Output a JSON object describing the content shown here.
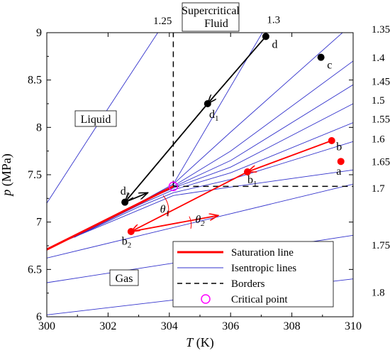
{
  "chart_data": {
    "type": "line",
    "xlabel": {
      "italic": "T",
      "rest": " (K)"
    },
    "ylabel": {
      "italic": "p",
      "rest": " (MPa)"
    },
    "xlim": [
      300,
      310
    ],
    "ylim": [
      6,
      9
    ],
    "xticks": [
      300,
      302,
      304,
      306,
      308,
      310
    ],
    "yticks": [
      6,
      6.5,
      7,
      7.5,
      8,
      8.5,
      9
    ],
    "xtick_labels": [
      "300",
      "302",
      "304",
      "306",
      "308",
      "310"
    ],
    "ytick_labels": [
      "6",
      "6.5",
      "7",
      "7.5",
      "8",
      "8.5",
      "9"
    ],
    "colors": {
      "saturation": "#ff0000",
      "isentropic": "#3333cc",
      "border": "#000000",
      "critical": "#ff00ff",
      "path_d": "#000000",
      "path_b": "#ff0000"
    },
    "region_labels": {
      "supercritical_line1": "Supercritical",
      "supercritical_line2": "Fluid",
      "liquid": "Liquid",
      "gas": "Gas"
    },
    "critical_point": {
      "x": 304.13,
      "y": 7.377
    },
    "saturation_line": {
      "x": [
        300,
        304.13
      ],
      "y": [
        6.71,
        7.377
      ]
    },
    "borders": {
      "vertical": {
        "x": [
          304.13,
          304.13
        ],
        "y": [
          7.377,
          9.2
        ]
      },
      "horizontal": {
        "x": [
          304.13,
          310
        ],
        "y": [
          7.377,
          7.377
        ]
      }
    },
    "isentropic_lines": [
      {
        "label": "1.25",
        "x": [
          300,
          302,
          304.13
        ],
        "y": [
          7.2,
          8.2,
          9.25
        ]
      },
      {
        "label": "1.3",
        "x": [
          300.9,
          303,
          304.13,
          307.4
        ],
        "y": [
          6.84,
          7.2,
          7.4,
          9.2
        ]
      },
      {
        "label": "1.35",
        "x": [
          300.9,
          303,
          304.13,
          306,
          310
        ],
        "y": [
          6.84,
          7.2,
          7.4,
          7.95,
          9.1
        ]
      },
      {
        "label": "1.4",
        "x": [
          300.9,
          303,
          304.13,
          306,
          310
        ],
        "y": [
          6.84,
          7.2,
          7.38,
          7.75,
          8.7
        ]
      },
      {
        "label": "1.45",
        "x": [
          300.9,
          303,
          304.13,
          306,
          310
        ],
        "y": [
          6.84,
          7.2,
          7.37,
          7.65,
          8.45
        ]
      },
      {
        "label": "1.5",
        "x": [
          300.9,
          303,
          304.13,
          306,
          310
        ],
        "y": [
          6.84,
          7.2,
          7.36,
          7.58,
          8.25
        ]
      },
      {
        "label": "1.55",
        "x": [
          300.9,
          303,
          304.13,
          306,
          310
        ],
        "y": [
          6.84,
          7.18,
          7.34,
          7.52,
          8.05
        ]
      },
      {
        "label": "1.6",
        "x": [
          300.9,
          303,
          304.13,
          306,
          310
        ],
        "y": [
          6.84,
          7.16,
          7.31,
          7.45,
          7.85
        ]
      },
      {
        "label": "1.65",
        "x": [
          300,
          304.13,
          306,
          310
        ],
        "y": [
          6.72,
          7.28,
          7.37,
          7.55
        ]
      },
      {
        "label": "1.7",
        "x": [
          300,
          310
        ],
        "y": [
          6.62,
          7.4
        ]
      },
      {
        "label": "1.75",
        "x": [
          300,
          310
        ],
        "y": [
          6.36,
          6.86
        ]
      },
      {
        "label": "1.8",
        "x": [
          300,
          310
        ],
        "y": [
          6.02,
          6.4
        ]
      }
    ],
    "isentropic_label_positions": [
      {
        "label": "1.25",
        "x": 303.78,
        "y": 9.09
      },
      {
        "label": "1.3",
        "x": 307.4,
        "y": 9.1
      },
      {
        "label": "1.35",
        "x": 310.6,
        "y": 9.0
      },
      {
        "label": "1.4",
        "x": 310.6,
        "y": 8.7
      },
      {
        "label": "1.45",
        "x": 310.6,
        "y": 8.45
      },
      {
        "label": "1.5",
        "x": 310.6,
        "y": 8.25
      },
      {
        "label": "1.55",
        "x": 310.6,
        "y": 8.05
      },
      {
        "label": "1.6",
        "x": 310.6,
        "y": 7.84
      },
      {
        "label": "1.65",
        "x": 310.6,
        "y": 7.6
      },
      {
        "label": "1.7",
        "x": 310.6,
        "y": 7.32
      },
      {
        "label": "1.75",
        "x": 310.6,
        "y": 6.72
      },
      {
        "label": "1.8",
        "x": 310.6,
        "y": 6.22
      }
    ],
    "points": [
      {
        "name": "d",
        "label": "d",
        "sub": "",
        "color": "black",
        "x": 307.15,
        "y": 8.96,
        "lx": 307.35,
        "ly": 8.84
      },
      {
        "name": "d1",
        "label": "d",
        "sub": "1",
        "color": "black",
        "x": 305.25,
        "y": 8.25,
        "lx": 305.3,
        "ly": 8.1
      },
      {
        "name": "d2",
        "label": "d",
        "sub": "2",
        "color": "black",
        "x": 302.55,
        "y": 7.21,
        "lx": 302.4,
        "ly": 7.29
      },
      {
        "name": "c",
        "label": "c",
        "sub": "",
        "color": "black",
        "x": 308.95,
        "y": 8.74,
        "lx": 309.15,
        "ly": 8.62
      },
      {
        "name": "b",
        "label": "b",
        "sub": "",
        "color": "red",
        "x": 309.3,
        "y": 7.86,
        "lx": 309.45,
        "ly": 7.76
      },
      {
        "name": "a",
        "label": "a",
        "sub": "",
        "color": "red",
        "x": 309.6,
        "y": 7.64,
        "lx": 309.45,
        "ly": 7.5
      },
      {
        "name": "b1",
        "label": "b",
        "sub": "1",
        "color": "red",
        "x": 306.55,
        "y": 7.53,
        "lx": 306.55,
        "ly": 7.41
      },
      {
        "name": "b2",
        "label": "b",
        "sub": "2",
        "color": "red",
        "x": 302.75,
        "y": 6.9,
        "lx": 302.45,
        "ly": 6.76
      }
    ],
    "paths": [
      {
        "name": "path-d",
        "color": "black",
        "x": [
          307.15,
          305.25,
          302.55,
          303.3
        ],
        "y": [
          8.96,
          8.25,
          7.21,
          7.31
        ],
        "arrow_at": [
          1,
          2,
          3
        ]
      },
      {
        "name": "path-b",
        "color": "red",
        "x": [
          309.3,
          306.55,
          302.75,
          305.6
        ],
        "y": [
          7.86,
          7.53,
          6.9,
          7.07
        ],
        "arrow_at": [
          1,
          2,
          3
        ]
      }
    ],
    "angles": [
      {
        "name": "theta1",
        "label": "θ",
        "sub": "1",
        "x": 303.85,
        "y": 7.1
      },
      {
        "name": "theta2",
        "label": "θ",
        "sub": "2",
        "x": 305.0,
        "y": 6.99
      }
    ],
    "legend": [
      {
        "label": "Saturation line",
        "style": "saturation"
      },
      {
        "label": "Isentropic lines",
        "style": "isentropic"
      },
      {
        "label": "Borders",
        "style": "border"
      },
      {
        "label": "Critical point",
        "style": "critical"
      }
    ]
  }
}
